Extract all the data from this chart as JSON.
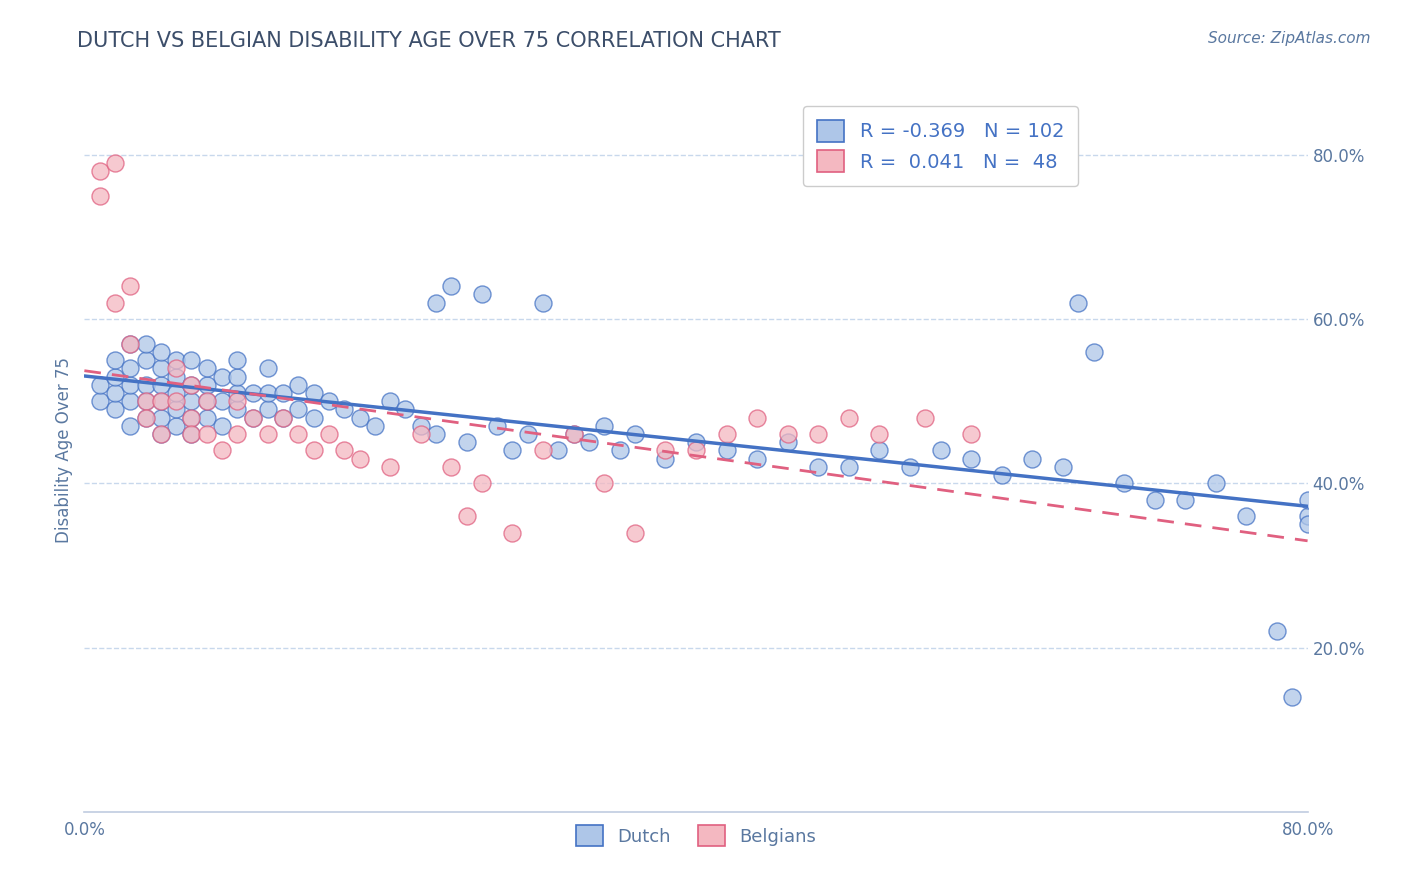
{
  "title": "DUTCH VS BELGIAN DISABILITY AGE OVER 75 CORRELATION CHART",
  "source": "Source: ZipAtlas.com",
  "ylabel": "Disability Age Over 75",
  "xlim": [
    0.0,
    0.8
  ],
  "ylim": [
    0.0,
    0.88
  ],
  "x_ticks": [
    0.0,
    0.1,
    0.2,
    0.3,
    0.4,
    0.5,
    0.6,
    0.7,
    0.8
  ],
  "x_tick_labels": [
    "0.0%",
    "",
    "",
    "",
    "",
    "",
    "",
    "",
    "80.0%"
  ],
  "y_ticks_right": [
    0.2,
    0.4,
    0.6,
    0.8
  ],
  "y_tick_labels_right": [
    "20.0%",
    "40.0%",
    "60.0%",
    "80.0%"
  ],
  "dutch_color": "#aec6e8",
  "belgian_color": "#f4b8c1",
  "dutch_line_color": "#4472c4",
  "belgian_line_color": "#e06080",
  "legend_R_dutch": "-0.369",
  "legend_N_dutch": "102",
  "legend_R_belgian": "0.041",
  "legend_N_belgian": "48",
  "title_color": "#3c4e6a",
  "axis_color": "#5a78a0",
  "grid_color": "#c8d8ec",
  "dutch_scatter_x": [
    0.01,
    0.01,
    0.02,
    0.02,
    0.02,
    0.02,
    0.03,
    0.03,
    0.03,
    0.03,
    0.03,
    0.04,
    0.04,
    0.04,
    0.04,
    0.04,
    0.05,
    0.05,
    0.05,
    0.05,
    0.05,
    0.05,
    0.06,
    0.06,
    0.06,
    0.06,
    0.06,
    0.07,
    0.07,
    0.07,
    0.07,
    0.07,
    0.08,
    0.08,
    0.08,
    0.08,
    0.09,
    0.09,
    0.09,
    0.1,
    0.1,
    0.1,
    0.1,
    0.11,
    0.11,
    0.12,
    0.12,
    0.12,
    0.13,
    0.13,
    0.14,
    0.14,
    0.15,
    0.15,
    0.16,
    0.17,
    0.18,
    0.19,
    0.2,
    0.21,
    0.22,
    0.23,
    0.23,
    0.24,
    0.25,
    0.26,
    0.27,
    0.28,
    0.29,
    0.3,
    0.31,
    0.32,
    0.33,
    0.34,
    0.35,
    0.36,
    0.38,
    0.4,
    0.42,
    0.44,
    0.46,
    0.48,
    0.5,
    0.52,
    0.54,
    0.56,
    0.58,
    0.6,
    0.62,
    0.64,
    0.65,
    0.66,
    0.68,
    0.7,
    0.72,
    0.74,
    0.76,
    0.78,
    0.79,
    0.8,
    0.8,
    0.8
  ],
  "dutch_scatter_y": [
    0.5,
    0.52,
    0.49,
    0.51,
    0.53,
    0.55,
    0.47,
    0.5,
    0.52,
    0.54,
    0.57,
    0.48,
    0.5,
    0.52,
    0.55,
    0.57,
    0.46,
    0.48,
    0.5,
    0.52,
    0.54,
    0.56,
    0.47,
    0.49,
    0.51,
    0.53,
    0.55,
    0.46,
    0.48,
    0.5,
    0.52,
    0.55,
    0.48,
    0.5,
    0.52,
    0.54,
    0.47,
    0.5,
    0.53,
    0.49,
    0.51,
    0.53,
    0.55,
    0.48,
    0.51,
    0.49,
    0.51,
    0.54,
    0.48,
    0.51,
    0.49,
    0.52,
    0.48,
    0.51,
    0.5,
    0.49,
    0.48,
    0.47,
    0.5,
    0.49,
    0.47,
    0.62,
    0.46,
    0.64,
    0.45,
    0.63,
    0.47,
    0.44,
    0.46,
    0.62,
    0.44,
    0.46,
    0.45,
    0.47,
    0.44,
    0.46,
    0.43,
    0.45,
    0.44,
    0.43,
    0.45,
    0.42,
    0.42,
    0.44,
    0.42,
    0.44,
    0.43,
    0.41,
    0.43,
    0.42,
    0.62,
    0.56,
    0.4,
    0.38,
    0.38,
    0.4,
    0.36,
    0.22,
    0.14,
    0.36,
    0.38,
    0.35
  ],
  "belgian_scatter_x": [
    0.01,
    0.01,
    0.02,
    0.02,
    0.03,
    0.03,
    0.04,
    0.04,
    0.05,
    0.05,
    0.06,
    0.06,
    0.07,
    0.07,
    0.07,
    0.08,
    0.08,
    0.09,
    0.1,
    0.1,
    0.11,
    0.12,
    0.13,
    0.14,
    0.15,
    0.16,
    0.17,
    0.18,
    0.2,
    0.22,
    0.24,
    0.25,
    0.26,
    0.28,
    0.3,
    0.32,
    0.34,
    0.36,
    0.38,
    0.4,
    0.42,
    0.44,
    0.46,
    0.48,
    0.5,
    0.52,
    0.55,
    0.58
  ],
  "belgian_scatter_y": [
    0.78,
    0.75,
    0.79,
    0.62,
    0.64,
    0.57,
    0.5,
    0.48,
    0.5,
    0.46,
    0.5,
    0.54,
    0.48,
    0.52,
    0.46,
    0.5,
    0.46,
    0.44,
    0.5,
    0.46,
    0.48,
    0.46,
    0.48,
    0.46,
    0.44,
    0.46,
    0.44,
    0.43,
    0.42,
    0.46,
    0.42,
    0.36,
    0.4,
    0.34,
    0.44,
    0.46,
    0.4,
    0.34,
    0.44,
    0.44,
    0.46,
    0.48,
    0.46,
    0.46,
    0.48,
    0.46,
    0.48,
    0.46
  ]
}
